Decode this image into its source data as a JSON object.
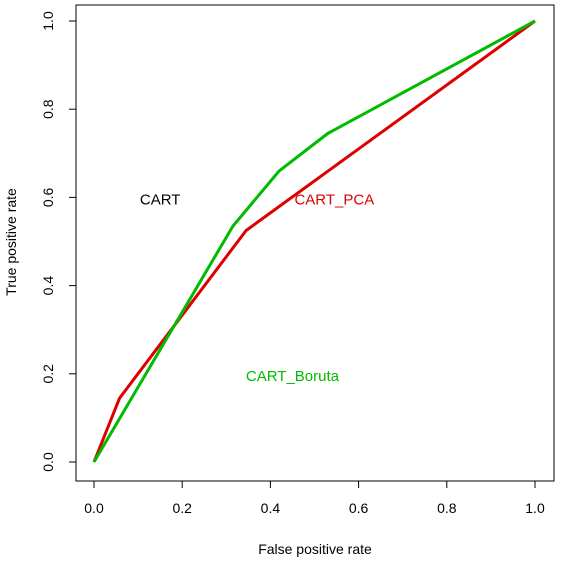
{
  "chart_data": {
    "type": "line",
    "title": "",
    "xlabel": "False positive rate",
    "ylabel": "True positive rate",
    "xlim": [
      0,
      1
    ],
    "ylim": [
      0,
      1
    ],
    "xticks": [
      "0.0",
      "0.2",
      "0.4",
      "0.6",
      "0.8",
      "1.0"
    ],
    "yticks": [
      "0.0",
      "0.2",
      "0.4",
      "0.6",
      "0.8",
      "1.0"
    ],
    "grid": false,
    "legend": "none",
    "series": [
      {
        "color": "#dd0000",
        "points": [
          [
            0.0,
            0.0
          ],
          [
            0.058,
            0.145
          ],
          [
            0.345,
            0.525
          ],
          [
            1.0,
            1.0
          ]
        ]
      },
      {
        "color": "#00bb00",
        "points": [
          [
            0.0,
            0.0
          ],
          [
            0.315,
            0.535
          ],
          [
            0.42,
            0.66
          ],
          [
            0.53,
            0.745
          ],
          [
            1.0,
            1.0
          ]
        ]
      }
    ],
    "annotations": [
      {
        "text": "CART",
        "x": 0.15,
        "y": 0.595,
        "color": "#000000"
      },
      {
        "text": "CART_PCA",
        "x": 0.545,
        "y": 0.595,
        "color": "#dd0000"
      },
      {
        "text": "CART_Boruta",
        "x": 0.45,
        "y": 0.195,
        "color": "#00bb00"
      }
    ]
  }
}
